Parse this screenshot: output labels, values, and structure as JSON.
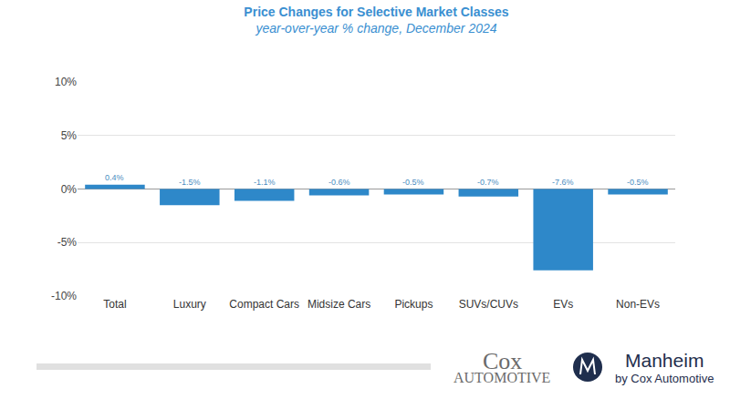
{
  "chart_data": {
    "type": "bar",
    "title": "Price Changes for Selective Market Classes",
    "subtitle": "year-over-year % change, December 2024",
    "categories": [
      "Total",
      "Luxury",
      "Compact Cars",
      "Midsize Cars",
      "Pickups",
      "SUVs/CUVs",
      "EVs",
      "Non-EVs"
    ],
    "values": [
      0.4,
      -1.5,
      -1.1,
      -0.6,
      -0.5,
      -0.7,
      -7.6,
      -0.5
    ],
    "value_labels": [
      "0.4%",
      "-1.5%",
      "-1.1%",
      "-0.6%",
      "-0.5%",
      "-0.7%",
      "-7.6%",
      "-0.5%"
    ],
    "color": "#2e88c9",
    "ylim": [
      -10,
      10
    ],
    "yticks": [
      {
        "value": -10,
        "label": "-10%"
      },
      {
        "value": -5,
        "label": "-5%"
      },
      {
        "value": 0,
        "label": "0%"
      },
      {
        "value": 5,
        "label": "5%"
      },
      {
        "value": 10,
        "label": "10%"
      }
    ],
    "grid": true,
    "data_labels": true,
    "annotations": [
      "Cox",
      "AUTOMOTIVE",
      "Manheim",
      "by Cox Automotive"
    ]
  }
}
